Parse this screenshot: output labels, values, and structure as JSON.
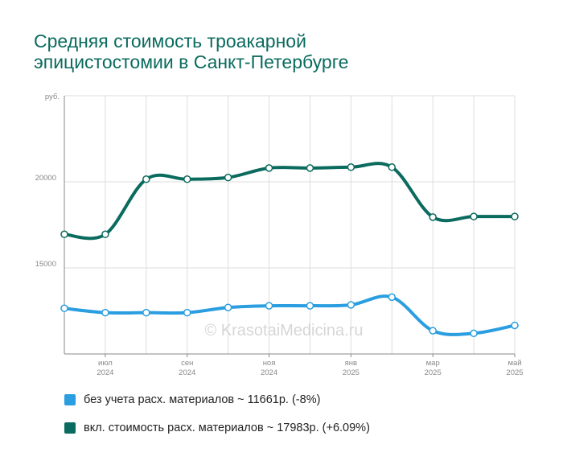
{
  "title_lines": [
    "Средняя стоимость троакарной",
    "эпицистостомии в Санкт-Петербурге"
  ],
  "watermark": "© KrasotaiMedicina.ru",
  "chart_data": {
    "type": "line",
    "y_unit": "руб.",
    "y_ticks": [
      15000,
      20000
    ],
    "ylim": [
      10000,
      25000
    ],
    "x": [
      0,
      1,
      2,
      3,
      4,
      5,
      6,
      7,
      8,
      9,
      10,
      11
    ],
    "x_tick_labels": [
      {
        "index": 1,
        "month": "июл",
        "year": "2024"
      },
      {
        "index": 3,
        "month": "сен",
        "year": "2024"
      },
      {
        "index": 5,
        "month": "ноя",
        "year": "2024"
      },
      {
        "index": 7,
        "month": "янв",
        "year": "2025"
      },
      {
        "index": 9,
        "month": "мар",
        "year": "2025"
      },
      {
        "index": 11,
        "month": "май",
        "year": "2025"
      }
    ],
    "grid": true,
    "legend_position": "bottom",
    "series": [
      {
        "name": "без учета расх. материалов ~ 11661р. (-8%)",
        "color": "#2a9ee0",
        "values": [
          12650,
          12400,
          12400,
          12400,
          12700,
          12800,
          12800,
          12850,
          13300,
          11350,
          11200,
          11661
        ]
      },
      {
        "name": "вкл. стоимость расх. материалов ~ 17983р. (+6.09%)",
        "color": "#0a6b5e",
        "values": [
          16950,
          16950,
          20150,
          20150,
          20250,
          20800,
          20800,
          20850,
          20850,
          17950,
          17983,
          17983
        ]
      }
    ]
  }
}
